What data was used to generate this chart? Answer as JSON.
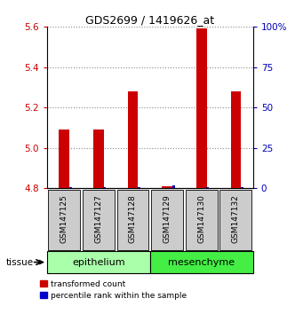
{
  "title": "GDS2699 / 1419626_at",
  "samples": [
    "GSM147125",
    "GSM147127",
    "GSM147128",
    "GSM147129",
    "GSM147130",
    "GSM147132"
  ],
  "red_values": [
    5.09,
    5.09,
    5.28,
    4.81,
    5.59,
    5.28
  ],
  "blue_values": [
    0.5,
    0.5,
    0.5,
    2.0,
    0.5,
    0.5
  ],
  "ylim_left": [
    4.8,
    5.6
  ],
  "ylim_right": [
    0,
    100
  ],
  "yticks_left": [
    4.8,
    5.0,
    5.2,
    5.4,
    5.6
  ],
  "yticks_right": [
    0,
    25,
    50,
    75,
    100
  ],
  "ytick_labels_right": [
    "0",
    "25",
    "50",
    "75",
    "100%"
  ],
  "epi_color": "#aaffaa",
  "mes_color": "#44ee44",
  "tissue_label": "tissue",
  "bar_bottom": 4.8,
  "red_color": "#cc0000",
  "blue_color": "#0000cc",
  "tick_color_left": "#cc0000",
  "tick_color_right": "#0000bb",
  "legend_red": "transformed count",
  "legend_blue": "percentile rank within the sample",
  "sample_box_color": "#cccccc",
  "epi_label": "epithelium",
  "mes_label": "mesenchyme"
}
